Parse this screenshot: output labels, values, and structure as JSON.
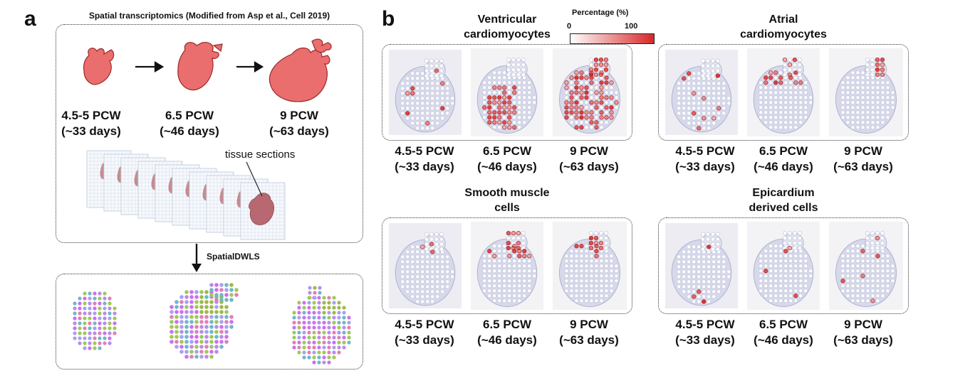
{
  "panel_a": {
    "letter": "a",
    "title": "Spatial transcriptomics (Modified from Asp et al., Cell 2019)",
    "stages": [
      {
        "pcw": "4.5-5 PCW",
        "days": "(~33 days)"
      },
      {
        "pcw": "6.5 PCW",
        "days": "(~46 days)"
      },
      {
        "pcw": "9 PCW",
        "days": "(~63 days)"
      }
    ],
    "tissue_label": "tissue sections",
    "method_label": "SpatialDWLS"
  },
  "panel_b": {
    "letter": "b",
    "legend": {
      "title": "Percentage (%)",
      "min": "0",
      "max": "100"
    },
    "cell_types": [
      {
        "line1": "Ventricular",
        "line2": "cardiomyocytes"
      },
      {
        "line1": "Atrial",
        "line2": "cardiomyocytes"
      },
      {
        "line1": "Smooth muscle",
        "line2": "cells"
      },
      {
        "line1": "Epicardium",
        "line2": "derived cells"
      }
    ],
    "stages": [
      {
        "pcw": "4.5-5 PCW",
        "days": "(~33 days)"
      },
      {
        "pcw": "6.5 PCW",
        "days": "(~46 days)"
      },
      {
        "pcw": "9 PCW",
        "days": "(~63 days)"
      }
    ]
  },
  "colors": {
    "heart": "#ea6e6e",
    "heart_stroke": "#9a2a2a",
    "high": "#d62828",
    "box": "#333333"
  }
}
